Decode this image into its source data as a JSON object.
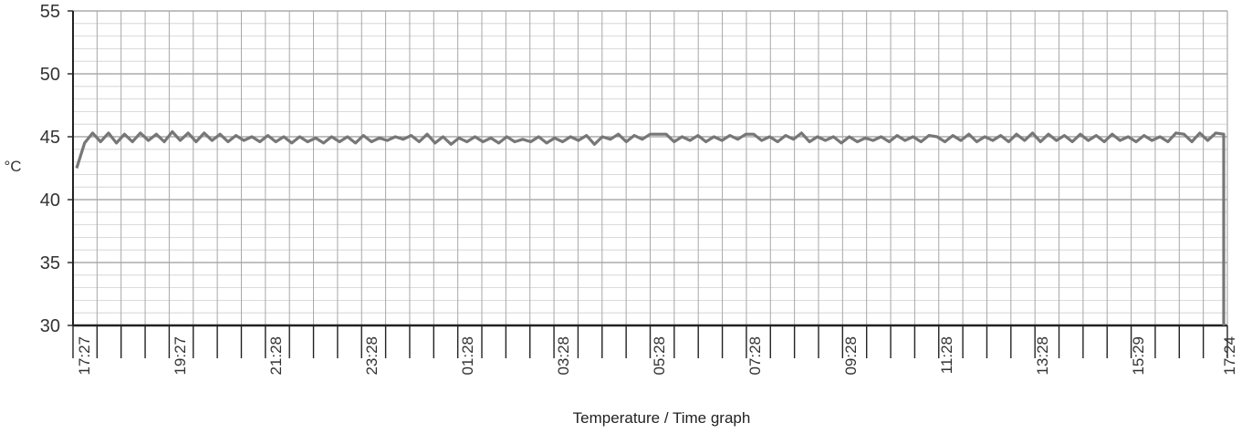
{
  "chart_data": {
    "type": "line",
    "title": "",
    "xlabel": "Temperature / Time graph",
    "ylabel": "°C",
    "ylim": [
      30,
      55
    ],
    "yticks": [
      30,
      35,
      40,
      45,
      50,
      55
    ],
    "x_tick_labels": [
      "17:27",
      "19:27",
      "21:28",
      "23:28",
      "01:28",
      "03:28",
      "05:28",
      "07:28",
      "09:28",
      "11:28",
      "13:28",
      "15:29",
      "17:24"
    ],
    "grid": true,
    "legend": "none",
    "line_color": "#777777",
    "series": [
      {
        "x": [
          "17:27",
          "17:37",
          "17:47",
          "17:57",
          "18:07",
          "18:17",
          "18:27",
          "18:37",
          "18:47",
          "18:57",
          "19:07",
          "19:17",
          "19:27",
          "19:37",
          "19:47",
          "19:57",
          "20:07",
          "20:17",
          "20:27",
          "20:37",
          "20:47",
          "20:57",
          "21:07",
          "21:17",
          "21:28",
          "21:38",
          "21:48",
          "21:58",
          "22:08",
          "22:18",
          "22:28",
          "22:38",
          "22:48",
          "22:58",
          "23:08",
          "23:18",
          "23:28",
          "23:38",
          "23:48",
          "23:58",
          "00:08",
          "00:18",
          "00:28",
          "00:38",
          "00:48",
          "00:58",
          "01:08",
          "01:18",
          "01:28",
          "01:38",
          "01:48",
          "01:58",
          "02:08",
          "02:18",
          "02:28",
          "02:38",
          "02:48",
          "02:58",
          "03:08",
          "03:18",
          "03:28",
          "03:38",
          "03:48",
          "03:58",
          "04:08",
          "04:18",
          "04:28",
          "04:38",
          "04:48",
          "04:58",
          "05:08",
          "05:18",
          "05:28",
          "05:38",
          "05:48",
          "05:58",
          "06:08",
          "06:18",
          "06:28",
          "06:38",
          "06:48",
          "06:58",
          "07:08",
          "07:18",
          "07:28",
          "07:38",
          "07:48",
          "07:58",
          "08:08",
          "08:18",
          "08:28",
          "08:38",
          "08:48",
          "08:58",
          "09:08",
          "09:18",
          "09:28",
          "09:38",
          "09:48",
          "09:58",
          "10:08",
          "10:18",
          "10:28",
          "10:38",
          "10:48",
          "10:58",
          "11:08",
          "11:18",
          "11:28",
          "11:38",
          "11:48",
          "11:58",
          "12:08",
          "12:18",
          "12:28",
          "12:38",
          "12:48",
          "12:58",
          "13:08",
          "13:18",
          "13:28",
          "13:38",
          "13:48",
          "13:58",
          "14:08",
          "14:18",
          "14:28",
          "14:38",
          "14:48",
          "14:58",
          "15:08",
          "15:18",
          "15:29",
          "15:39",
          "15:49",
          "15:59",
          "16:09",
          "16:19",
          "16:29",
          "16:39",
          "16:49",
          "16:59",
          "17:09",
          "17:19",
          "17:24",
          "17:24"
        ],
        "y": [
          42.5,
          44.5,
          45.3,
          44.6,
          45.3,
          44.5,
          45.2,
          44.6,
          45.3,
          44.7,
          45.2,
          44.6,
          45.4,
          44.7,
          45.3,
          44.6,
          45.3,
          44.7,
          45.2,
          44.6,
          45.1,
          44.7,
          45.0,
          44.6,
          45.1,
          44.6,
          45.0,
          44.5,
          45.0,
          44.6,
          44.9,
          44.5,
          45.0,
          44.6,
          45.0,
          44.5,
          45.1,
          44.6,
          44.9,
          44.7,
          45.0,
          44.8,
          45.1,
          44.6,
          45.2,
          44.5,
          45.0,
          44.4,
          44.9,
          44.6,
          45.0,
          44.6,
          44.9,
          44.5,
          45.0,
          44.6,
          44.8,
          44.6,
          45.0,
          44.5,
          44.9,
          44.6,
          45.0,
          44.7,
          45.1,
          44.4,
          45.0,
          44.8,
          45.2,
          44.6,
          45.1,
          44.8,
          45.2,
          45.2,
          45.2,
          44.6,
          45.0,
          44.7,
          45.1,
          44.6,
          45.0,
          44.7,
          45.1,
          44.8,
          45.2,
          45.2,
          44.7,
          45.0,
          44.6,
          45.1,
          44.8,
          45.3,
          44.6,
          45.0,
          44.7,
          45.0,
          44.5,
          45.0,
          44.6,
          44.9,
          44.7,
          45.0,
          44.6,
          45.1,
          44.7,
          45.0,
          44.6,
          45.1,
          45.0,
          44.6,
          45.1,
          44.7,
          45.2,
          44.6,
          45.0,
          44.7,
          45.1,
          44.6,
          45.2,
          44.7,
          45.3,
          44.6,
          45.2,
          44.7,
          45.1,
          44.6,
          45.2,
          44.7,
          45.1,
          44.6,
          45.2,
          44.7,
          45.0,
          44.6,
          45.1,
          44.7,
          45.0,
          44.6,
          45.3,
          45.2,
          44.6,
          45.3,
          44.7,
          45.3,
          45.2,
          30
        ]
      }
    ]
  }
}
